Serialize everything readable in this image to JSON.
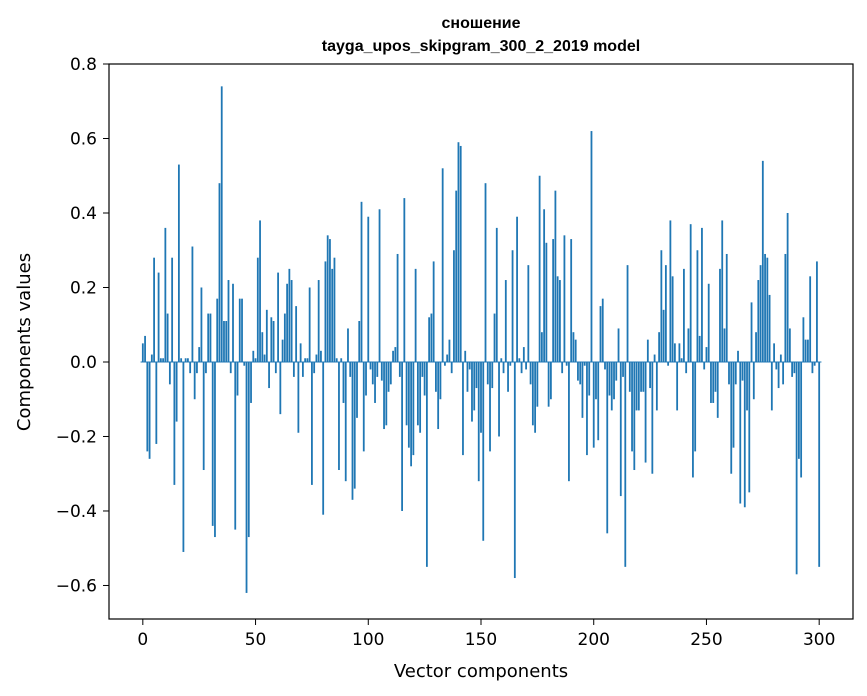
{
  "chart_data": {
    "type": "bar",
    "title_line1": "сношение",
    "title_line2": "tayga_upos_skipgram_300_2_2019 model",
    "xlabel": "Vector components",
    "ylabel": "Components values",
    "xlim": [
      -15,
      315
    ],
    "ylim": [
      -0.69,
      0.8
    ],
    "xticks": [
      0,
      50,
      100,
      150,
      200,
      250,
      300
    ],
    "xtick_labels": [
      "0",
      "50",
      "100",
      "150",
      "200",
      "250",
      "300"
    ],
    "yticks": [
      -0.6,
      -0.4,
      -0.2,
      0.0,
      0.2,
      0.4,
      0.6,
      0.8
    ],
    "ytick_labels": [
      "−0.6",
      "−0.4",
      "−0.2",
      "0.0",
      "0.2",
      "0.4",
      "0.6",
      "0.8"
    ],
    "grid": false,
    "bar_color": "#1f77b4",
    "values": [
      0.05,
      0.07,
      -0.24,
      -0.26,
      0.02,
      0.28,
      -0.22,
      0.24,
      0.01,
      0.01,
      0.36,
      0.13,
      -0.06,
      0.28,
      -0.33,
      -0.16,
      0.53,
      0.01,
      -0.51,
      0.01,
      0.01,
      -0.03,
      0.31,
      -0.1,
      -0.03,
      0.04,
      0.2,
      -0.29,
      -0.03,
      0.13,
      0.13,
      -0.44,
      -0.47,
      0.17,
      0.48,
      0.74,
      0.11,
      0.11,
      0.22,
      -0.03,
      0.21,
      -0.45,
      -0.09,
      0.17,
      0.17,
      -0.01,
      -0.62,
      -0.47,
      -0.11,
      0.03,
      0.01,
      0.28,
      0.38,
      0.08,
      0.02,
      0.14,
      -0.07,
      0.12,
      0.11,
      -0.03,
      0.24,
      -0.14,
      0.06,
      0.13,
      0.21,
      0.25,
      0.22,
      -0.04,
      0.15,
      -0.19,
      0.05,
      -0.04,
      0.01,
      0.01,
      0.2,
      -0.33,
      -0.03,
      0.02,
      0.22,
      0.03,
      -0.41,
      0.27,
      0.34,
      0.33,
      0.25,
      0.28,
      0.01,
      -0.29,
      0.01,
      -0.11,
      -0.32,
      0.09,
      -0.04,
      -0.37,
      -0.34,
      -0.15,
      0.11,
      0.43,
      -0.24,
      -0.09,
      0.39,
      -0.02,
      -0.06,
      -0.11,
      -0.04,
      0.41,
      -0.05,
      -0.18,
      -0.17,
      -0.08,
      -0.06,
      0.03,
      0.04,
      0.29,
      -0.04,
      -0.4,
      0.44,
      -0.17,
      -0.23,
      -0.28,
      -0.25,
      0.25,
      -0.17,
      -0.19,
      -0.04,
      -0.09,
      -0.55,
      0.12,
      0.13,
      0.27,
      -0.08,
      -0.18,
      -0.1,
      0.52,
      -0.01,
      0.02,
      0.06,
      -0.03,
      0.3,
      0.46,
      0.59,
      0.58,
      -0.25,
      0.03,
      -0.08,
      -0.02,
      -0.16,
      -0.13,
      -0.07,
      -0.32,
      -0.19,
      -0.48,
      0.48,
      -0.06,
      -0.24,
      -0.07,
      0.13,
      0.36,
      -0.2,
      0.01,
      -0.03,
      0.22,
      -0.08,
      -0.01,
      0.3,
      -0.58,
      0.39,
      0.01,
      -0.03,
      0.04,
      -0.02,
      0.26,
      -0.06,
      -0.17,
      -0.19,
      -0.12,
      0.5,
      0.08,
      0.41,
      0.32,
      -0.12,
      -0.1,
      0.33,
      0.46,
      0.23,
      0.22,
      -0.03,
      0.34,
      -0.01,
      -0.32,
      0.33,
      0.08,
      0.06,
      -0.05,
      -0.06,
      -0.15,
      -0.01,
      -0.25,
      -0.09,
      0.62,
      -0.23,
      -0.1,
      -0.21,
      0.15,
      0.17,
      -0.02,
      -0.46,
      -0.09,
      -0.13,
      -0.1,
      -0.05,
      0.09,
      -0.36,
      -0.04,
      -0.55,
      0.26,
      -0.08,
      -0.24,
      -0.29,
      -0.13,
      -0.13,
      -0.08,
      -0.08,
      -0.27,
      0.06,
      -0.07,
      -0.3,
      0.02,
      -0.13,
      0.08,
      0.3,
      0.14,
      0.26,
      -0.01,
      0.38,
      0.23,
      0.05,
      -0.13,
      0.05,
      0.01,
      0.25,
      -0.03,
      0.09,
      0.37,
      -0.31,
      -0.24,
      0.3,
      0.07,
      0.36,
      -0.02,
      0.04,
      0.21,
      -0.11,
      -0.11,
      -0.08,
      -0.15,
      0.25,
      0.38,
      0.09,
      0.29,
      -0.06,
      -0.3,
      -0.23,
      -0.06,
      0.03,
      -0.38,
      -0.05,
      -0.39,
      -0.13,
      -0.35,
      0.16,
      -0.1,
      0.08,
      0.22,
      0.26,
      0.54,
      0.29,
      0.28,
      0.18,
      -0.13,
      0.05,
      -0.02,
      -0.07,
      0.02,
      -0.06,
      0.29,
      0.4,
      0.09,
      -0.04,
      -0.03,
      -0.57,
      -0.26,
      -0.31,
      0.12,
      0.06,
      0.06,
      0.23,
      -0.03,
      -0.01,
      0.27,
      -0.55
    ]
  }
}
